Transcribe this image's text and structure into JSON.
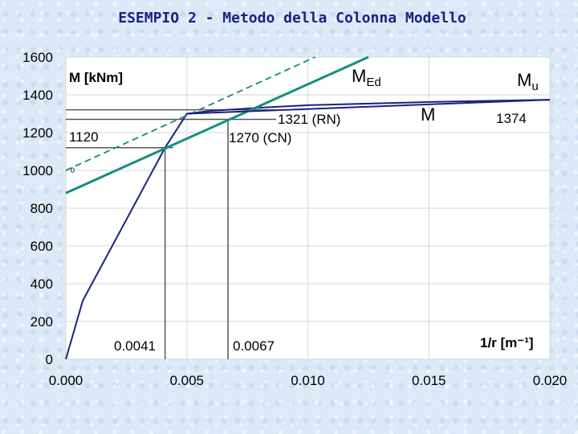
{
  "title": "ESEMPIO 2 - Metodo della Colonna Modello",
  "chart_data": {
    "type": "line",
    "ylabel": "M [kNm]",
    "xlabel": "1/r [m⁻¹]",
    "xlim": [
      0.0,
      0.02
    ],
    "ylim": [
      0,
      1600
    ],
    "x_ticks": [
      "0.000",
      "0.005",
      "0.010",
      "0.015",
      "0.020"
    ],
    "y_ticks": [
      "0",
      "200",
      "400",
      "600",
      "800",
      "1000",
      "1200",
      "1400",
      "1600"
    ],
    "series": [
      {
        "name": "M",
        "color": "#1a237e",
        "style": "solid",
        "x": [
          0.0,
          0.0007,
          0.0041,
          0.005,
          0.006,
          0.008,
          0.01,
          0.015,
          0.02
        ],
        "y": [
          0,
          310,
          1120,
          1300,
          1315,
          1332,
          1345,
          1362,
          1374
        ]
      },
      {
        "name": "MEd",
        "color": "#138f80",
        "style": "solid",
        "x": [
          0.0,
          0.0125
        ],
        "y": [
          880,
          1600
        ]
      },
      {
        "name": "MEd (dashed)",
        "color": "#138f80",
        "style": "dashed",
        "x": [
          0.0,
          0.0103
        ],
        "y": [
          1000,
          1600
        ]
      },
      {
        "name": "Mu",
        "color": "#1a237e",
        "style": "solid",
        "x": [
          0.005,
          0.02
        ],
        "y": [
          1300,
          1374
        ]
      }
    ],
    "reference_lines": [
      {
        "x": 0.0041,
        "y": 1120
      },
      {
        "x": 0.0067,
        "y": 1270
      },
      {
        "x": 0.0067,
        "y": 1321
      }
    ],
    "annotations": {
      "x_0041": "0.0041",
      "x_0067": "0.0067",
      "m_1120": "1120",
      "m_1321": "1321 (RN)",
      "m_1270": "1270 (CN)",
      "m_1374": "1374",
      "m_label": "M",
      "med_main": "M",
      "med_sub": "Ed",
      "mu_main": "M",
      "mu_sub": "u",
      "small_mark": "0"
    }
  }
}
